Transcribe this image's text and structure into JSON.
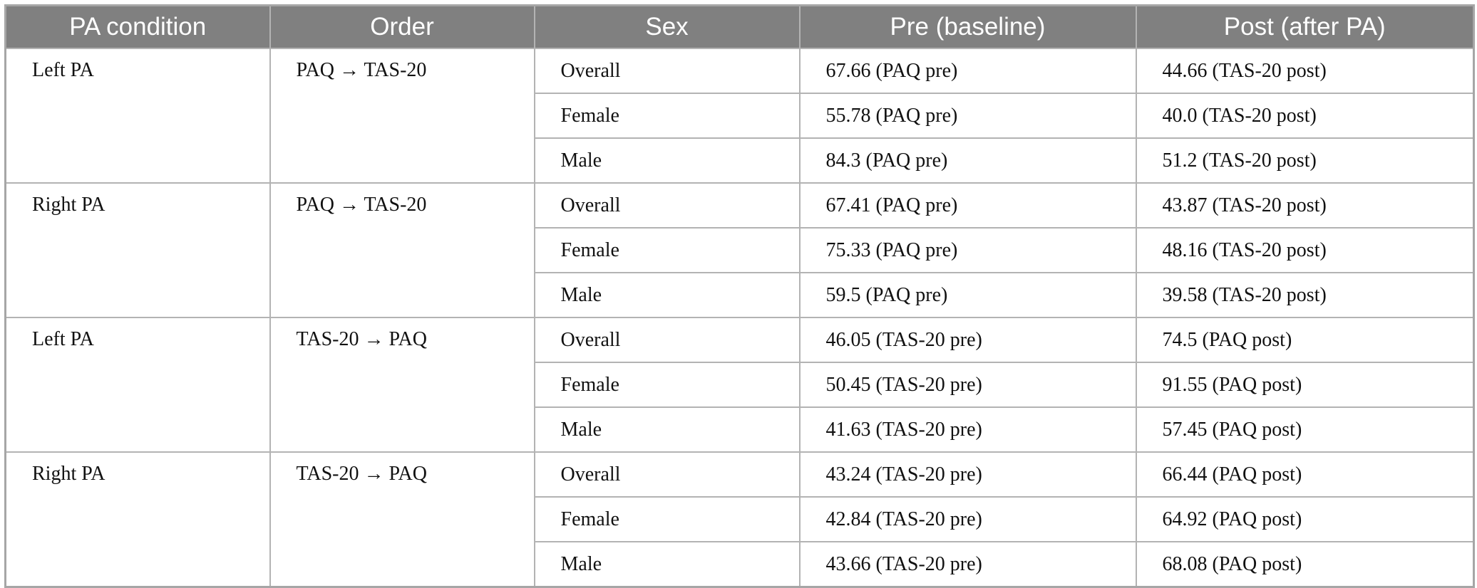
{
  "table": {
    "header": [
      "PA condition",
      "Order",
      "Sex",
      "Pre (baseline)",
      "Post (after PA)"
    ],
    "groups": [
      {
        "condition": "Left PA",
        "order": "PAQ → TAS-20",
        "rows": [
          [
            "Overall",
            "67.66 (PAQ pre)",
            "44.66 (TAS-20 post)"
          ],
          [
            "Female",
            "55.78 (PAQ pre)",
            "40.0 (TAS-20 post)"
          ],
          [
            "Male",
            "84.3 (PAQ pre)",
            "51.2 (TAS-20 post)"
          ]
        ]
      },
      {
        "condition": "Right PA",
        "order": "PAQ → TAS-20",
        "rows": [
          [
            "Overall",
            "67.41 (PAQ pre)",
            "43.87 (TAS-20 post)"
          ],
          [
            "Female",
            "75.33 (PAQ pre)",
            "48.16 (TAS-20 post)"
          ],
          [
            "Male",
            "59.5 (PAQ pre)",
            "39.58 (TAS-20 post)"
          ]
        ]
      },
      {
        "condition": "Left PA",
        "order": "TAS-20 → PAQ",
        "rows": [
          [
            "Overall",
            "46.05 (TAS-20 pre)",
            "74.5 (PAQ post)"
          ],
          [
            "Female",
            "50.45 (TAS-20 pre)",
            "91.55 (PAQ post)"
          ],
          [
            "Male",
            "41.63 (TAS-20 pre)",
            "57.45 (PAQ post)"
          ]
        ]
      },
      {
        "condition": "Right PA",
        "order": "TAS-20 → PAQ",
        "rows": [
          [
            "Overall",
            "43.24 (TAS-20 pre)",
            "66.44 (PAQ post)"
          ],
          [
            "Female",
            "42.84 (TAS-20 pre)",
            "64.92 (PAQ post)"
          ],
          [
            "Male",
            "43.66 (TAS-20 pre)",
            "68.08 (PAQ post)"
          ]
        ]
      }
    ]
  }
}
